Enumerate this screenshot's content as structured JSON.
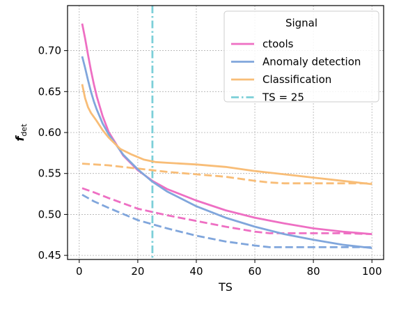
{
  "chart_data": {
    "type": "line",
    "xlabel": "TS",
    "ylabel": "f",
    "ylabel_sub": "det",
    "xlim": [
      -4,
      104
    ],
    "ylim": [
      0.445,
      0.755
    ],
    "xticks": [
      0,
      20,
      40,
      60,
      80,
      100
    ],
    "yticks": [
      0.45,
      0.5,
      0.55,
      0.6,
      0.65,
      0.7
    ],
    "ytick_labels": [
      "0.45",
      "0.50",
      "0.55",
      "0.60",
      "0.65",
      "0.70"
    ],
    "grid": true,
    "legend": {
      "title": "Signal",
      "placement": "top-right",
      "entries": [
        {
          "label": "ctools",
          "color": "#ee6fc3",
          "style": "solid"
        },
        {
          "label": "Anomaly detection",
          "color": "#80a6dc",
          "style": "solid"
        },
        {
          "label": "Classification",
          "color": "#f8bd77",
          "style": "solid"
        },
        {
          "label": "TS = 25",
          "color": "#7ccfd8",
          "style": "dashdot"
        }
      ]
    },
    "vline": {
      "x": 25,
      "color": "#7ccfd8"
    },
    "series": [
      {
        "name": "ctools",
        "color": "#ee6fc3",
        "style": "solid",
        "x": [
          1,
          2,
          3,
          4,
          5,
          6,
          8,
          10,
          15,
          20,
          25,
          30,
          40,
          50,
          60,
          70,
          80,
          90,
          100
        ],
        "y": [
          0.733,
          0.715,
          0.695,
          0.676,
          0.659,
          0.644,
          0.62,
          0.601,
          0.572,
          0.554,
          0.541,
          0.531,
          0.517,
          0.505,
          0.496,
          0.489,
          0.483,
          0.479,
          0.476
        ]
      },
      {
        "name": "Anomaly detection",
        "color": "#80a6dc",
        "style": "solid",
        "x": [
          1,
          2,
          3,
          4,
          5,
          6,
          8,
          10,
          15,
          20,
          25,
          30,
          40,
          50,
          60,
          70,
          80,
          90,
          100
        ],
        "y": [
          0.693,
          0.679,
          0.664,
          0.65,
          0.638,
          0.628,
          0.611,
          0.598,
          0.573,
          0.555,
          0.54,
          0.528,
          0.51,
          0.496,
          0.485,
          0.476,
          0.469,
          0.463,
          0.459
        ]
      },
      {
        "name": "Classification",
        "color": "#f8bd77",
        "style": "solid",
        "x": [
          1,
          2,
          3,
          4,
          6,
          8,
          10,
          14,
          18,
          22,
          26,
          30,
          40,
          50,
          60,
          70,
          80,
          90,
          100
        ],
        "y": [
          0.659,
          0.642,
          0.631,
          0.624,
          0.614,
          0.603,
          0.594,
          0.58,
          0.573,
          0.567,
          0.564,
          0.563,
          0.561,
          0.558,
          0.553,
          0.549,
          0.545,
          0.541,
          0.537
        ]
      },
      {
        "color": "#ee6fc3",
        "style": "dashed",
        "x": [
          1,
          5,
          10,
          20,
          30,
          40,
          50,
          60,
          65,
          70,
          80,
          90,
          100
        ],
        "y": [
          0.532,
          0.527,
          0.52,
          0.507,
          0.499,
          0.492,
          0.485,
          0.479,
          0.477,
          0.477,
          0.477,
          0.477,
          0.476
        ]
      },
      {
        "color": "#80a6dc",
        "style": "dashed",
        "x": [
          1,
          5,
          10,
          20,
          30,
          40,
          50,
          60,
          65,
          70,
          80,
          90,
          100
        ],
        "y": [
          0.524,
          0.516,
          0.508,
          0.493,
          0.483,
          0.474,
          0.467,
          0.462,
          0.46,
          0.46,
          0.46,
          0.46,
          0.46
        ]
      },
      {
        "color": "#f8bd77",
        "style": "dashed",
        "x": [
          1,
          10,
          20,
          30,
          40,
          50,
          60,
          65,
          70,
          80,
          90,
          100
        ],
        "y": [
          0.562,
          0.56,
          0.556,
          0.552,
          0.549,
          0.546,
          0.541,
          0.539,
          0.538,
          0.538,
          0.538,
          0.538
        ]
      }
    ]
  }
}
